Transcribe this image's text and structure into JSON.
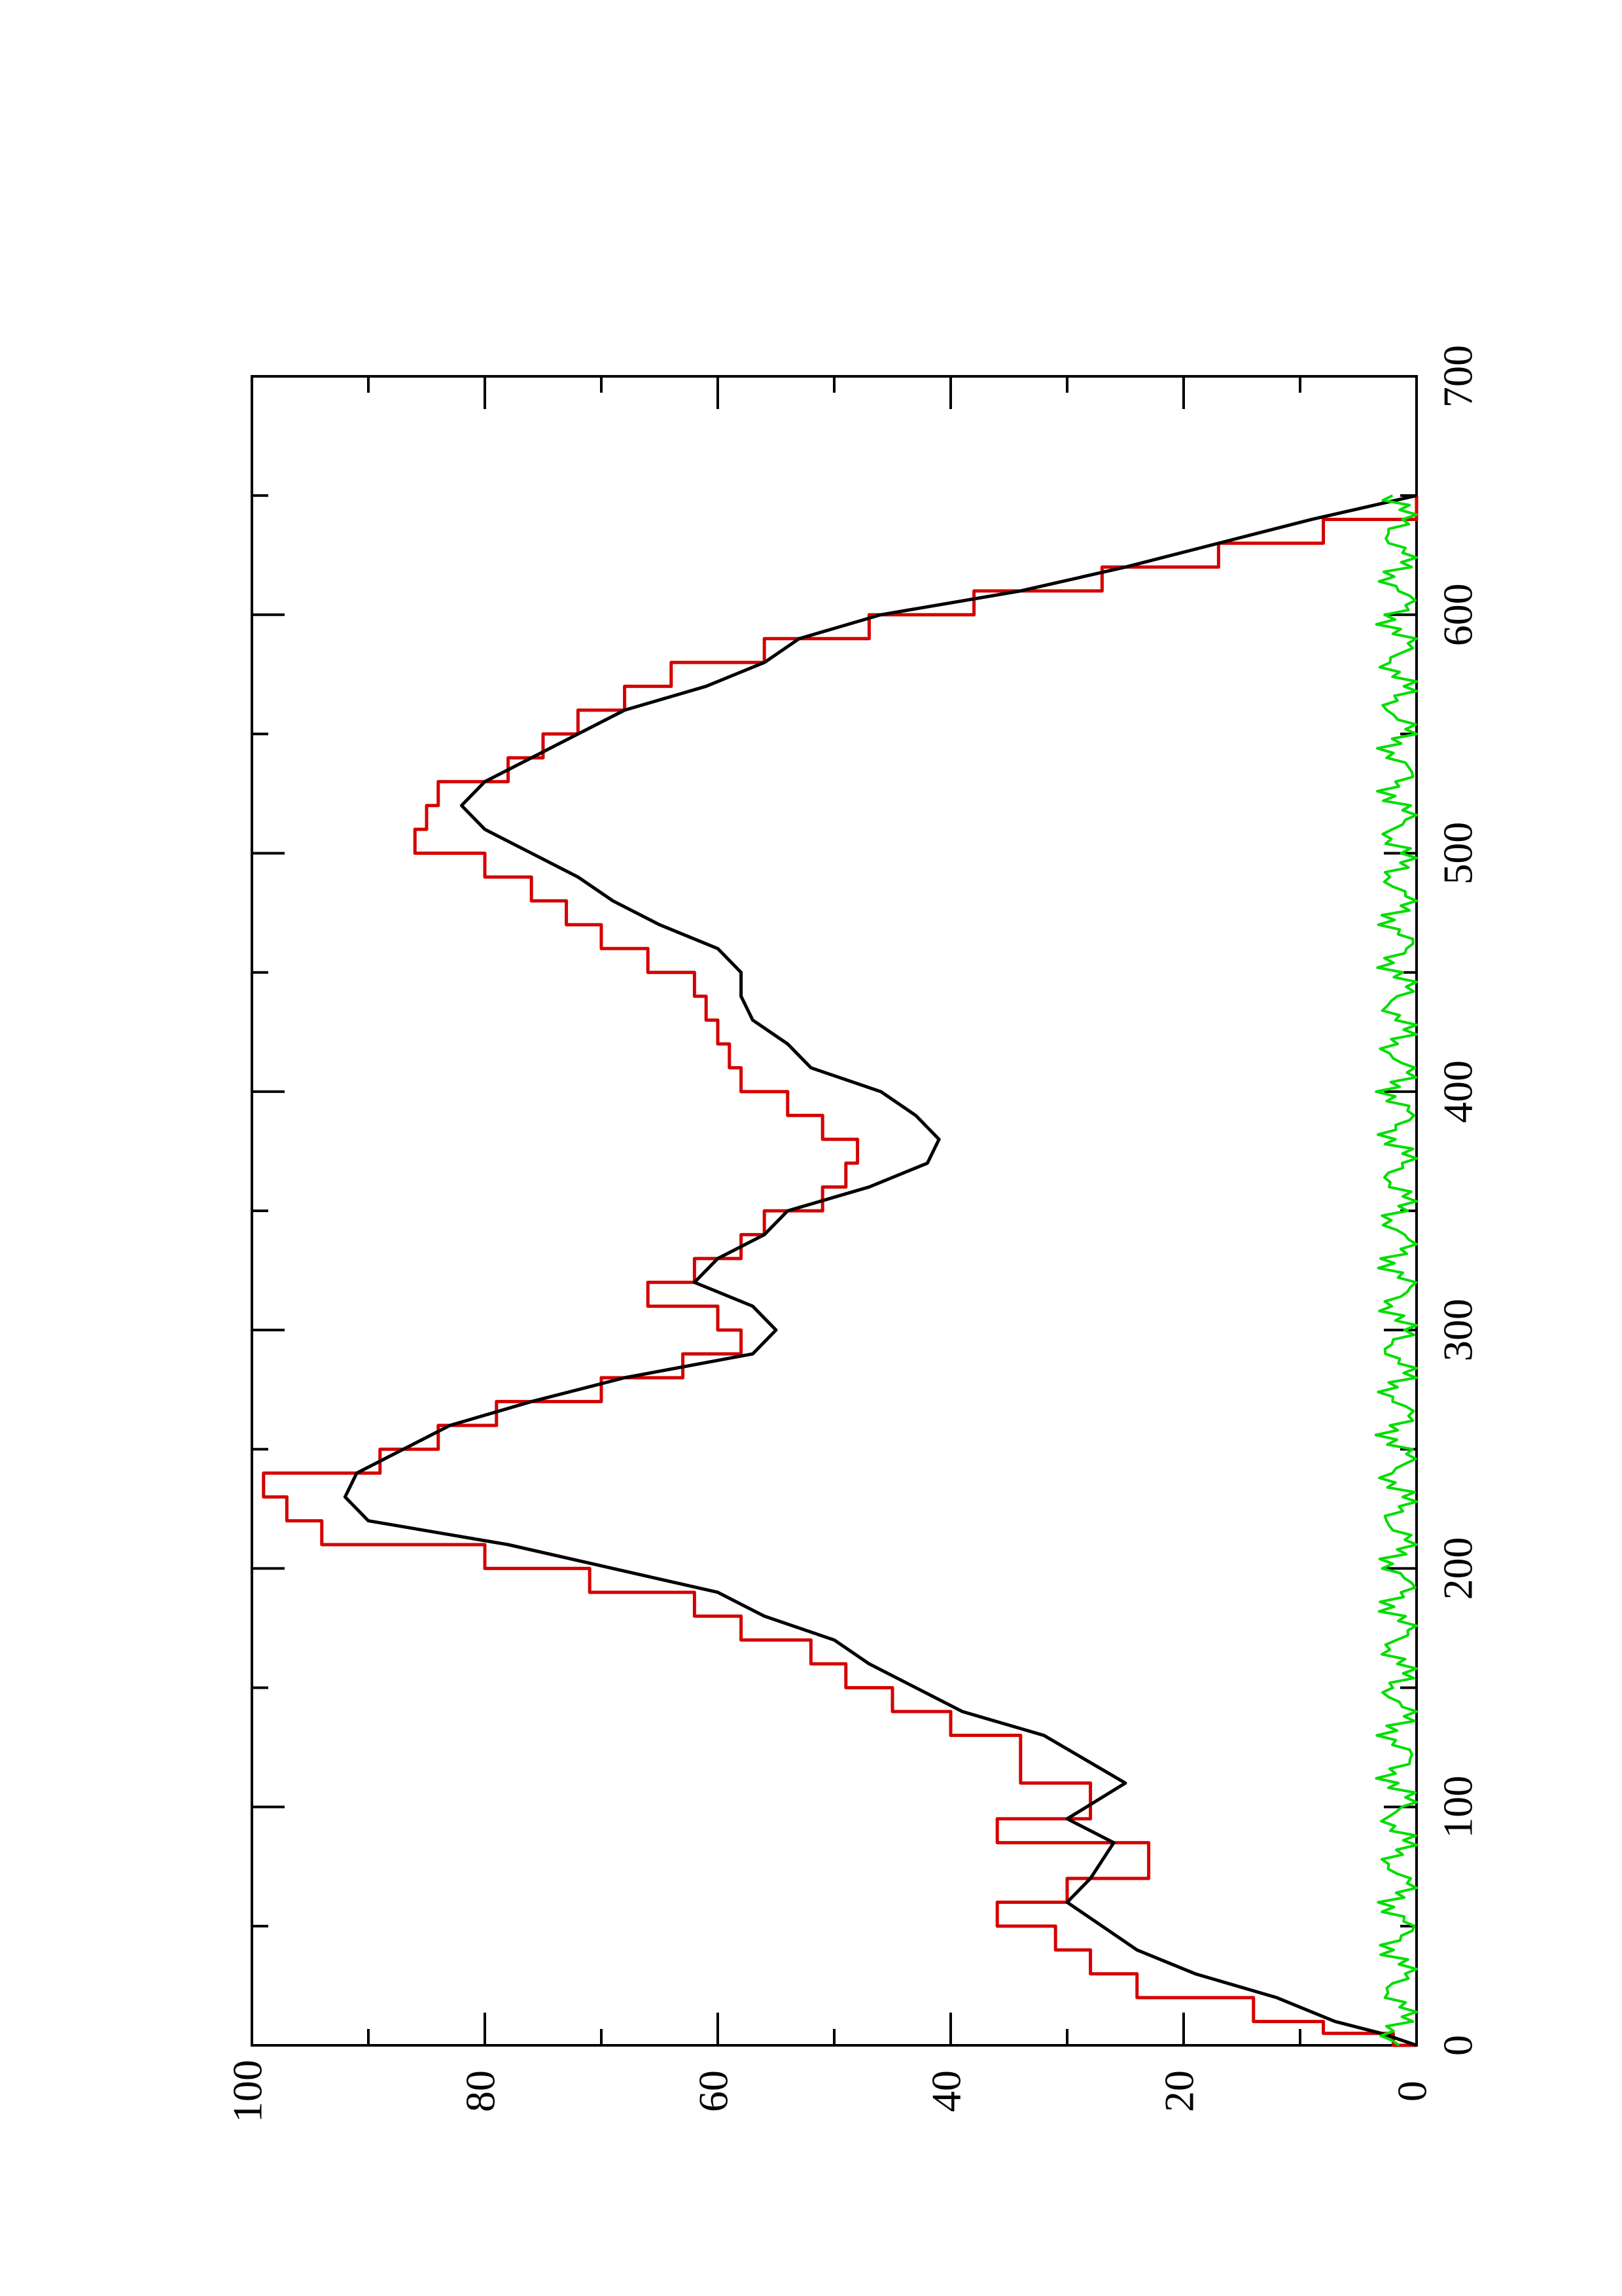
{
  "chart_data": {
    "type": "line",
    "orientation": "rotated-90-counterclockwise",
    "title": "",
    "xlabel": "",
    "ylabel": "",
    "xlim": [
      0,
      700
    ],
    "ylim": [
      0,
      100
    ],
    "x_ticks": [
      0,
      100,
      200,
      300,
      400,
      500,
      600,
      700
    ],
    "y_ticks": [
      0,
      20,
      40,
      60,
      80,
      100
    ],
    "x_tick_labels": [
      "0",
      "100",
      "200",
      "300",
      "400",
      "500",
      "600",
      "700"
    ],
    "y_tick_labels": [
      "0",
      "20",
      "40",
      "60",
      "80",
      "100"
    ],
    "grid": false,
    "legend": "none",
    "series": [
      {
        "color": "#d40000",
        "style": "step",
        "points": [
          [
            0,
            0
          ],
          [
            5,
            2
          ],
          [
            10,
            8
          ],
          [
            20,
            14
          ],
          [
            30,
            24
          ],
          [
            40,
            28
          ],
          [
            50,
            31
          ],
          [
            60,
            36
          ],
          [
            70,
            30
          ],
          [
            85,
            23
          ],
          [
            95,
            36
          ],
          [
            110,
            28
          ],
          [
            130,
            34
          ],
          [
            140,
            40
          ],
          [
            150,
            45
          ],
          [
            160,
            49
          ],
          [
            170,
            52
          ],
          [
            180,
            58
          ],
          [
            190,
            62
          ],
          [
            200,
            71
          ],
          [
            210,
            80
          ],
          [
            220,
            94
          ],
          [
            230,
            97
          ],
          [
            240,
            99
          ],
          [
            250,
            89
          ],
          [
            260,
            84
          ],
          [
            270,
            79
          ],
          [
            280,
            70
          ],
          [
            290,
            63
          ],
          [
            300,
            58
          ],
          [
            310,
            60
          ],
          [
            320,
            66
          ],
          [
            330,
            62
          ],
          [
            340,
            58
          ],
          [
            350,
            56
          ],
          [
            360,
            51
          ],
          [
            370,
            49
          ],
          [
            380,
            48
          ],
          [
            390,
            51
          ],
          [
            400,
            54
          ],
          [
            410,
            58
          ],
          [
            420,
            59
          ],
          [
            430,
            60
          ],
          [
            440,
            61
          ],
          [
            450,
            62
          ],
          [
            460,
            66
          ],
          [
            470,
            70
          ],
          [
            480,
            73
          ],
          [
            490,
            76
          ],
          [
            500,
            80
          ],
          [
            510,
            86
          ],
          [
            520,
            85
          ],
          [
            530,
            84
          ],
          [
            540,
            78
          ],
          [
            550,
            75
          ],
          [
            560,
            72
          ],
          [
            570,
            68
          ],
          [
            580,
            64
          ],
          [
            590,
            56
          ],
          [
            600,
            47
          ],
          [
            610,
            38
          ],
          [
            620,
            27
          ],
          [
            630,
            17
          ],
          [
            640,
            8
          ],
          [
            650,
            0
          ]
        ]
      },
      {
        "color": "#000000",
        "style": "line",
        "points": [
          [
            0,
            0
          ],
          [
            5,
            3
          ],
          [
            10,
            7
          ],
          [
            20,
            12
          ],
          [
            30,
            19
          ],
          [
            40,
            24
          ],
          [
            50,
            27
          ],
          [
            60,
            30
          ],
          [
            70,
            28
          ],
          [
            85,
            26
          ],
          [
            95,
            30
          ],
          [
            110,
            25
          ],
          [
            130,
            32
          ],
          [
            140,
            39
          ],
          [
            150,
            43
          ],
          [
            160,
            47
          ],
          [
            170,
            50
          ],
          [
            180,
            56
          ],
          [
            190,
            60
          ],
          [
            200,
            69
          ],
          [
            210,
            78
          ],
          [
            220,
            90
          ],
          [
            230,
            92
          ],
          [
            240,
            91
          ],
          [
            250,
            87
          ],
          [
            260,
            83
          ],
          [
            270,
            76
          ],
          [
            280,
            68
          ],
          [
            290,
            57
          ],
          [
            300,
            55
          ],
          [
            310,
            57
          ],
          [
            320,
            62
          ],
          [
            330,
            60
          ],
          [
            340,
            56
          ],
          [
            350,
            54
          ],
          [
            360,
            47
          ],
          [
            370,
            42
          ],
          [
            380,
            41
          ],
          [
            390,
            43
          ],
          [
            400,
            46
          ],
          [
            410,
            52
          ],
          [
            420,
            54
          ],
          [
            430,
            57
          ],
          [
            440,
            58
          ],
          [
            450,
            58
          ],
          [
            460,
            60
          ],
          [
            470,
            65
          ],
          [
            480,
            69
          ],
          [
            490,
            72
          ],
          [
            500,
            76
          ],
          [
            510,
            80
          ],
          [
            520,
            82
          ],
          [
            530,
            80
          ],
          [
            540,
            76
          ],
          [
            550,
            72
          ],
          [
            560,
            68
          ],
          [
            570,
            61
          ],
          [
            580,
            56
          ],
          [
            590,
            53
          ],
          [
            600,
            46
          ],
          [
            610,
            34
          ],
          [
            620,
            25
          ],
          [
            630,
            17
          ],
          [
            640,
            9
          ],
          [
            650,
            0
          ]
        ]
      },
      {
        "color": "#00dd00",
        "style": "noise",
        "points": [
          [
            0,
            0
          ],
          [
            20,
            2
          ],
          [
            40,
            1
          ],
          [
            60,
            3
          ],
          [
            80,
            2
          ],
          [
            100,
            3
          ],
          [
            120,
            2
          ],
          [
            140,
            4
          ],
          [
            160,
            2
          ],
          [
            180,
            3
          ],
          [
            200,
            2
          ],
          [
            220,
            4
          ],
          [
            240,
            2
          ],
          [
            260,
            3
          ],
          [
            280,
            1
          ],
          [
            300,
            2
          ],
          [
            320,
            4
          ],
          [
            340,
            1
          ],
          [
            360,
            3
          ],
          [
            380,
            2
          ],
          [
            400,
            4
          ],
          [
            420,
            1
          ],
          [
            440,
            3
          ],
          [
            460,
            2
          ],
          [
            480,
            4
          ],
          [
            500,
            2
          ],
          [
            520,
            3
          ],
          [
            540,
            2
          ],
          [
            560,
            4
          ],
          [
            580,
            3
          ],
          [
            600,
            2
          ],
          [
            620,
            4
          ],
          [
            640,
            2
          ],
          [
            650,
            0
          ]
        ]
      }
    ]
  }
}
